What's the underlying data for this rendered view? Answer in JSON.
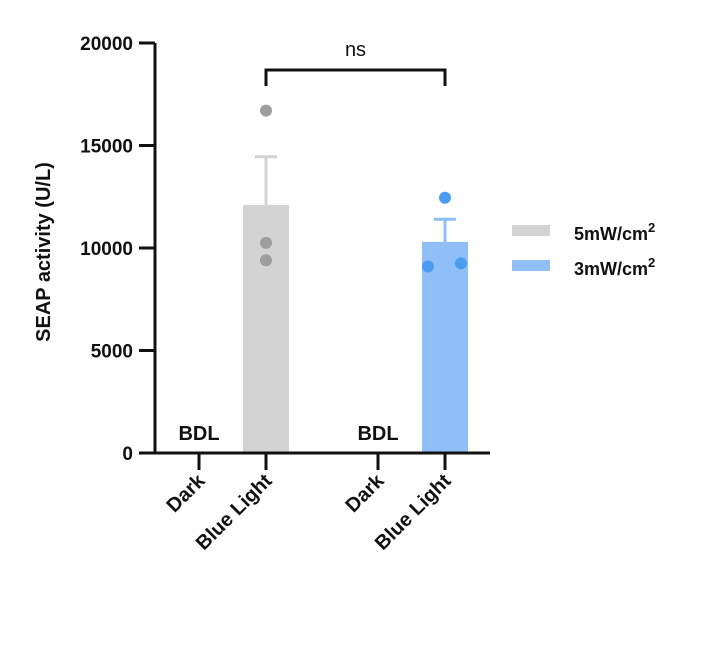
{
  "chart_data": {
    "type": "bar",
    "ylabel": "SEAP activity (U/L)",
    "ylim": [
      0,
      20000
    ],
    "yticks": [
      0,
      5000,
      10000,
      15000,
      20000
    ],
    "categories": [
      "Dark",
      "Blue Light",
      "Dark",
      "Blue Light"
    ],
    "groups": [
      {
        "series": "5mW/cm2",
        "color": "#d3d3d3",
        "dot_color": "#9e9e9e",
        "bars": [
          {
            "category": "Dark",
            "value": 0,
            "label": "BDL"
          },
          {
            "category": "Blue Light",
            "value": 12100,
            "error": 2350,
            "points": [
              16700,
              10250,
              9400
            ]
          }
        ]
      },
      {
        "series": "3mW/cm2",
        "color": "#90bff8",
        "dot_color": "#4a9df0",
        "bars": [
          {
            "category": "Dark",
            "value": 0,
            "label": "BDL"
          },
          {
            "category": "Blue Light",
            "value": 10300,
            "error": 1100,
            "points": [
              12450,
              9100,
              9250
            ]
          }
        ]
      }
    ],
    "significance": {
      "label": "ns",
      "between": [
        1,
        3
      ]
    },
    "legend": {
      "placement": "right",
      "entries": [
        {
          "base": "5mW/cm",
          "sup": "2",
          "color": "#d3d3d3"
        },
        {
          "base": "3mW/cm",
          "sup": "2",
          "color": "#90bff8"
        }
      ]
    },
    "grid": false
  }
}
